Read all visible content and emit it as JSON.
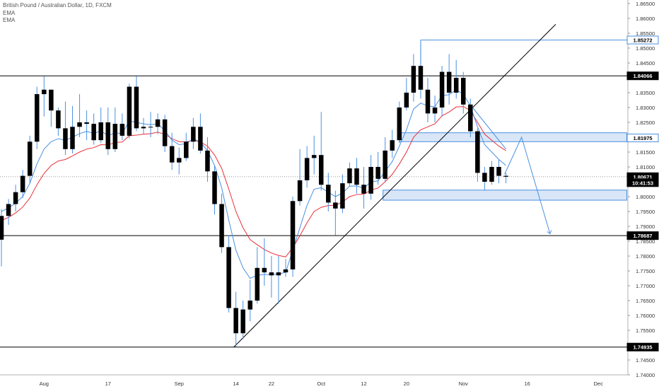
{
  "header": {
    "title": "British Pound / Australian Dollar, 1D, FXCM",
    "indicators": [
      "EMA",
      "EMA"
    ]
  },
  "colors": {
    "up_candle": "#000000",
    "down_candle": "#000000",
    "wick": "#4a90e2",
    "ema_fast": "#4a90e2",
    "ema_slow": "#e8313a",
    "drawing_blue": "#4a90e2",
    "zone_fill": "#d9e6f7",
    "level_line": "#000000",
    "trend_line": "#000000"
  },
  "chart_data": {
    "type": "candlestick",
    "ylim": [
      1.74,
      1.865
    ],
    "y_ticks": [
      "1.86500",
      "1.86000",
      "1.85500",
      "1.85000",
      "1.84500",
      "1.84000",
      "1.83500",
      "1.83000",
      "1.82500",
      "1.82000",
      "1.81500",
      "1.81000",
      "1.80500",
      "1.80000",
      "1.79500",
      "1.79000",
      "1.78500",
      "1.78000",
      "1.77500",
      "1.77000",
      "1.76500",
      "1.76000",
      "1.75500",
      "1.75000",
      "1.74500",
      "1.74000"
    ],
    "x_ticks": [
      {
        "label": "Aug",
        "bar": 6
      },
      {
        "label": "17",
        "bar": 15
      },
      {
        "label": "Sep",
        "bar": 25
      },
      {
        "label": "14",
        "bar": 33
      },
      {
        "label": "22",
        "bar": 38
      },
      {
        "label": "Oct",
        "bar": 45
      },
      {
        "label": "12",
        "bar": 51
      },
      {
        "label": "20",
        "bar": 57
      },
      {
        "label": "Nov",
        "bar": 65
      },
      {
        "label": "16",
        "bar": 74
      },
      {
        "label": "Dec",
        "bar": 84
      }
    ],
    "price_labels": [
      {
        "label": "1.85272",
        "value": 1.85272,
        "style": "blue"
      },
      {
        "label": "1.84066",
        "value": 1.84066,
        "style": "dark"
      },
      {
        "label": "1.81975",
        "value": 1.81975,
        "style": "blue"
      },
      {
        "label": "1.80671",
        "value": 1.80671,
        "style": "dark"
      },
      {
        "label": "10:41:53",
        "value": 1.80469,
        "style": "dark"
      },
      {
        "label": "1.78687",
        "value": 1.78687,
        "style": "dark"
      },
      {
        "label": "1.74935",
        "value": 1.74935,
        "style": "dark"
      }
    ],
    "horizontal_levels": [
      1.84066,
      1.78687,
      1.74935
    ],
    "current_price": 1.80671,
    "candles": [
      [
        1.7855,
        1.7935,
        1.7765,
        1.7958
      ],
      [
        1.7935,
        1.7975,
        1.7905,
        1.7992
      ],
      [
        1.7975,
        1.8015,
        1.795,
        1.804
      ],
      [
        1.8015,
        1.807,
        1.7995,
        1.809
      ],
      [
        1.807,
        1.8185,
        1.8045,
        1.8205
      ],
      [
        1.8185,
        1.8345,
        1.816,
        1.837
      ],
      [
        1.8345,
        1.836,
        1.827,
        1.8405
      ],
      [
        1.836,
        1.829,
        1.8235,
        1.836
      ],
      [
        1.829,
        1.823,
        1.8205,
        1.83
      ],
      [
        1.823,
        1.816,
        1.814,
        1.832
      ],
      [
        1.816,
        1.8235,
        1.8145,
        1.8305
      ],
      [
        1.8235,
        1.825,
        1.82,
        1.8345
      ],
      [
        1.825,
        1.8245,
        1.819,
        1.829
      ],
      [
        1.8245,
        1.819,
        1.8175,
        1.828
      ],
      [
        1.819,
        1.825,
        1.818,
        1.83
      ],
      [
        1.825,
        1.816,
        1.814,
        1.83
      ],
      [
        1.816,
        1.8245,
        1.815,
        1.83
      ],
      [
        1.8245,
        1.8205,
        1.819,
        1.828
      ],
      [
        1.8205,
        1.837,
        1.8195,
        1.838
      ],
      [
        1.837,
        1.823,
        1.822,
        1.8405
      ],
      [
        1.823,
        1.8235,
        1.821,
        1.8265
      ],
      [
        1.8235,
        1.8235,
        1.82,
        1.8285
      ],
      [
        1.8235,
        1.826,
        1.821,
        1.828
      ],
      [
        1.826,
        1.817,
        1.815,
        1.8275
      ],
      [
        1.817,
        1.8115,
        1.809,
        1.8215
      ],
      [
        1.8115,
        1.813,
        1.8075,
        1.8165
      ],
      [
        1.813,
        1.8185,
        1.812,
        1.8215
      ],
      [
        1.8185,
        1.8235,
        1.816,
        1.8265
      ],
      [
        1.8235,
        1.8155,
        1.8145,
        1.828
      ],
      [
        1.8155,
        1.8085,
        1.805,
        1.82
      ],
      [
        1.8085,
        1.7975,
        1.794,
        1.8105
      ],
      [
        1.7975,
        1.783,
        1.781,
        1.801
      ],
      [
        1.783,
        1.7625,
        1.761,
        1.787
      ],
      [
        1.7625,
        1.754,
        1.7495,
        1.768
      ],
      [
        1.754,
        1.762,
        1.752,
        1.765
      ],
      [
        1.762,
        1.765,
        1.758,
        1.772
      ],
      [
        1.765,
        1.776,
        1.764,
        1.783
      ],
      [
        1.776,
        1.7745,
        1.77,
        1.786
      ],
      [
        1.7745,
        1.7735,
        1.766,
        1.78
      ],
      [
        1.7735,
        1.7745,
        1.764,
        1.78
      ],
      [
        1.7745,
        1.7755,
        1.773,
        1.779
      ],
      [
        1.7755,
        1.7985,
        1.773,
        1.8
      ],
      [
        1.7985,
        1.8055,
        1.797,
        1.816
      ],
      [
        1.8055,
        1.813,
        1.803,
        1.817
      ],
      [
        1.813,
        1.814,
        1.8075,
        1.8205
      ],
      [
        1.814,
        1.804,
        1.802,
        1.8285
      ],
      [
        1.804,
        1.798,
        1.795,
        1.808
      ],
      [
        1.798,
        1.796,
        1.787,
        1.802
      ],
      [
        1.796,
        1.8045,
        1.7945,
        1.8075
      ],
      [
        1.8045,
        1.8095,
        1.8035,
        1.8115
      ],
      [
        1.8095,
        1.804,
        1.801,
        1.813
      ],
      [
        1.804,
        1.801,
        1.796,
        1.81
      ],
      [
        1.801,
        1.81,
        1.799,
        1.814
      ],
      [
        1.81,
        1.806,
        1.804,
        1.815
      ],
      [
        1.806,
        1.8155,
        1.805,
        1.82
      ],
      [
        1.8155,
        1.819,
        1.813,
        1.8225
      ],
      [
        1.819,
        1.83,
        1.818,
        1.832
      ],
      [
        1.83,
        1.835,
        1.829,
        1.84
      ],
      [
        1.835,
        1.844,
        1.832,
        1.848
      ],
      [
        1.844,
        1.836,
        1.833,
        1.852
      ],
      [
        1.836,
        1.828,
        1.825,
        1.84
      ],
      [
        1.828,
        1.83,
        1.825,
        1.834
      ],
      [
        1.83,
        1.842,
        1.827,
        1.844
      ],
      [
        1.842,
        1.835,
        1.831,
        1.848
      ],
      [
        1.835,
        1.84,
        1.833,
        1.846
      ],
      [
        1.84,
        1.831,
        1.828,
        1.842
      ],
      [
        1.831,
        1.822,
        1.82,
        1.833
      ],
      [
        1.822,
        1.808,
        1.805,
        1.823
      ],
      [
        1.808,
        1.805,
        1.802,
        1.81
      ],
      [
        1.805,
        1.81,
        1.804,
        1.812
      ],
      [
        1.81,
        1.807,
        1.8045,
        1.8125
      ],
      [
        1.807,
        1.8067,
        1.8045,
        1.808
      ]
    ],
    "ema_fast": [
      1.795,
      1.7962,
      1.7978,
      1.8,
      1.8045,
      1.811,
      1.816,
      1.8185,
      1.8195,
      1.819,
      1.82,
      1.8212,
      1.822,
      1.8212,
      1.8222,
      1.8205,
      1.8215,
      1.8212,
      1.8255,
      1.825,
      1.8245,
      1.8242,
      1.8245,
      1.8222,
      1.819,
      1.8175,
      1.8178,
      1.8195,
      1.8183,
      1.8155,
      1.8105,
      1.803,
      1.792,
      1.782,
      1.776,
      1.7725,
      1.7735,
      1.7738,
      1.7737,
      1.774,
      1.7745,
      1.782,
      1.7895,
      1.797,
      1.8025,
      1.803,
      1.8015,
      1.8,
      1.8012,
      1.8035,
      1.8036,
      1.8028,
      1.805,
      1.8053,
      1.8085,
      1.8118,
      1.817,
      1.8225,
      1.8295,
      1.8315,
      1.8305,
      1.8303,
      1.834,
      1.8343,
      1.836,
      1.8345,
      1.8305,
      1.8235,
      1.8175,
      1.815,
      1.8125,
      1.8105
    ],
    "ema_slow": [
      1.792,
      1.793,
      1.7945,
      1.7965,
      1.7995,
      1.804,
      1.8078,
      1.8105,
      1.812,
      1.8125,
      1.8137,
      1.815,
      1.816,
      1.8165,
      1.8175,
      1.8174,
      1.8182,
      1.8184,
      1.8205,
      1.8207,
      1.821,
      1.8212,
      1.8217,
      1.821,
      1.8195,
      1.8185,
      1.8184,
      1.819,
      1.8184,
      1.817,
      1.814,
      1.8095,
      1.8025,
      1.795,
      1.7895,
      1.7855,
      1.7838,
      1.7822,
      1.781,
      1.7802,
      1.7797,
      1.7828,
      1.7868,
      1.7912,
      1.795,
      1.7964,
      1.797,
      1.7971,
      1.7982,
      1.8,
      1.8007,
      1.8008,
      1.8022,
      1.8029,
      1.805,
      1.8075,
      1.811,
      1.815,
      1.82,
      1.8225,
      1.8235,
      1.8245,
      1.8272,
      1.8285,
      1.8302,
      1.8303,
      1.829,
      1.825,
      1.821,
      1.819,
      1.817,
      1.8155
    ]
  }
}
